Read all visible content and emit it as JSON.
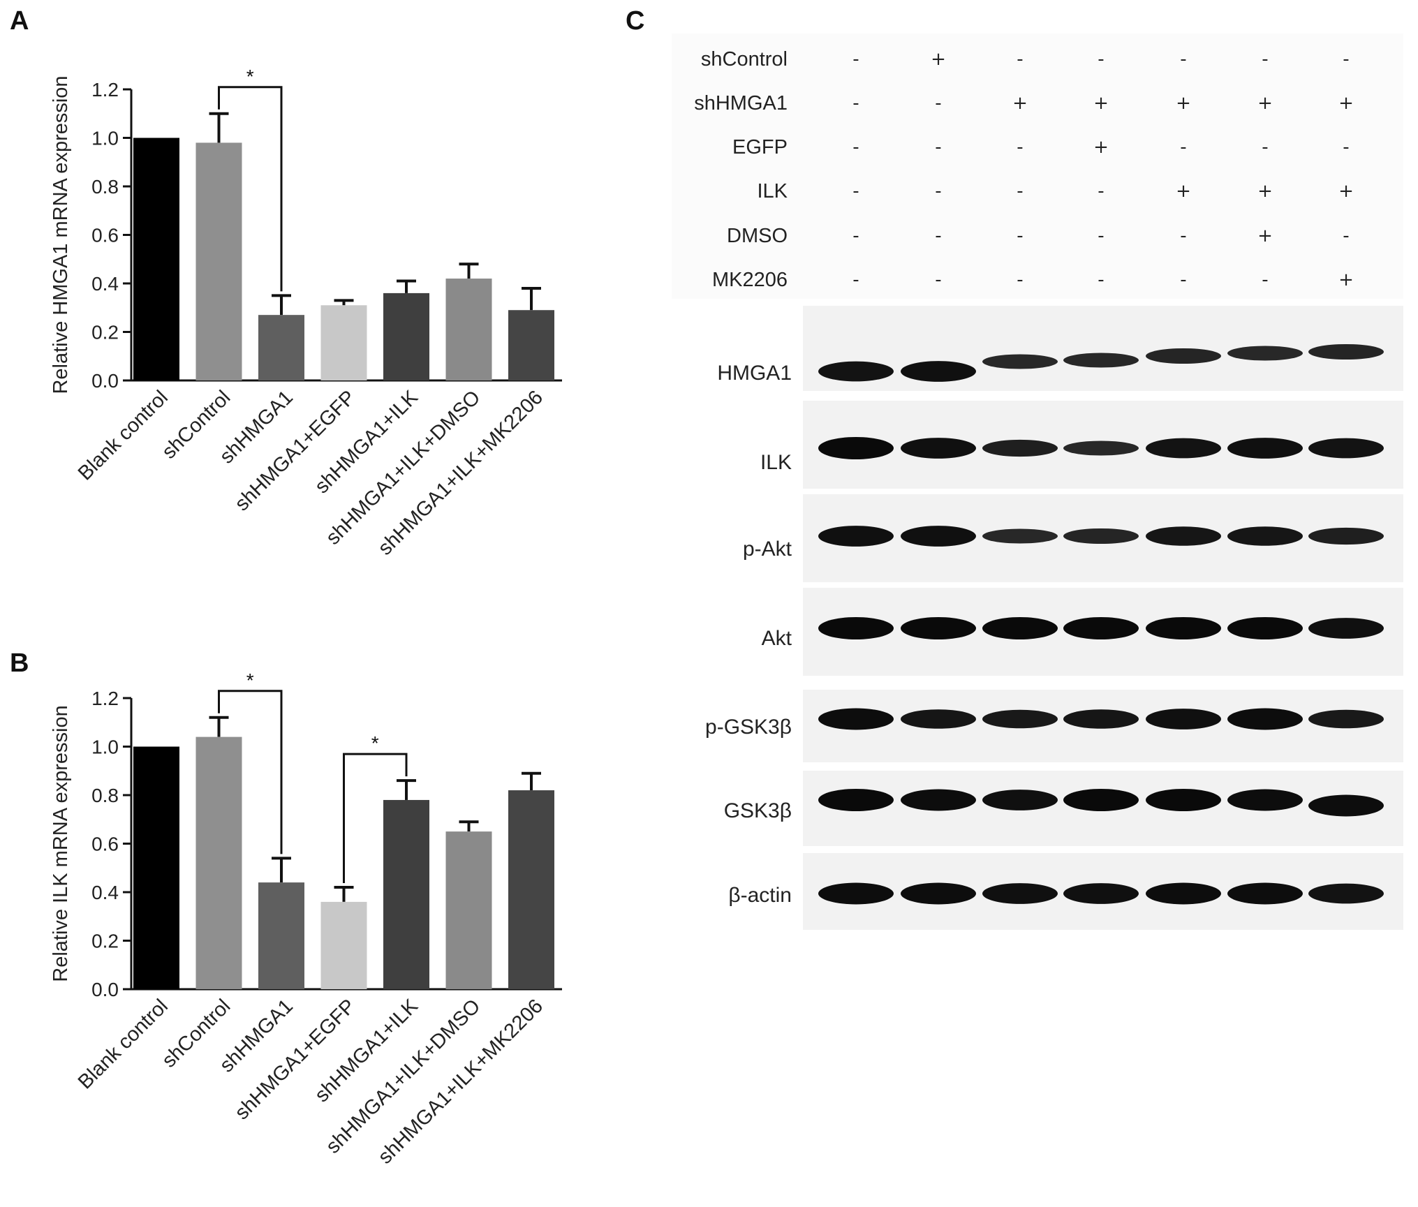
{
  "panels": {
    "a": "A",
    "b": "B",
    "c": "C"
  },
  "chart_data": [
    {
      "panel": "A",
      "type": "bar",
      "ylabel": "Relative HMGA1 mRNA expression",
      "xlabel": "",
      "ylim": [
        0,
        1.2
      ],
      "yticks": [
        "0.0",
        "0.2",
        "0.4",
        "0.6",
        "0.8",
        "1.0",
        "1.2"
      ],
      "categories": [
        "Blank control",
        "shControl",
        "shHMGA1",
        "shHMGA1+EGFP",
        "shHMGA1+ILK",
        "shHMGA1+ILK+DMSO",
        "shHMGA1+ILK+MK2206"
      ],
      "values": [
        1.0,
        0.98,
        0.27,
        0.31,
        0.36,
        0.42,
        0.29
      ],
      "errors": [
        0.0,
        0.12,
        0.08,
        0.02,
        0.05,
        0.06,
        0.09
      ],
      "colors": [
        "#000000",
        "#8f8f8f",
        "#5f5f5f",
        "#c8c8c8",
        "#3f3f3f",
        "#8a8a8a",
        "#454545"
      ],
      "significance": [
        {
          "from": 1,
          "to": 2,
          "label": "*"
        }
      ]
    },
    {
      "panel": "B",
      "type": "bar",
      "ylabel": "Relative ILK mRNA expression",
      "xlabel": "",
      "ylim": [
        0,
        1.2
      ],
      "yticks": [
        "0.0",
        "0.2",
        "0.4",
        "0.6",
        "0.8",
        "1.0",
        "1.2"
      ],
      "categories": [
        "Blank control",
        "shControl",
        "shHMGA1",
        "shHMGA1+EGFP",
        "shHMGA1+ILK",
        "shHMGA1+ILK+DMSO",
        "shHMGA1+ILK+MK2206"
      ],
      "values": [
        1.0,
        1.04,
        0.44,
        0.36,
        0.78,
        0.65,
        0.82
      ],
      "errors": [
        0.0,
        0.08,
        0.1,
        0.06,
        0.08,
        0.04,
        0.07
      ],
      "colors": [
        "#000000",
        "#8f8f8f",
        "#5f5f5f",
        "#c8c8c8",
        "#3f3f3f",
        "#8a8a8a",
        "#454545"
      ],
      "significance": [
        {
          "from": 1,
          "to": 2,
          "label": "*"
        },
        {
          "from": 3,
          "to": 4,
          "label": "*"
        }
      ]
    }
  ],
  "western_blot": {
    "conditions": [
      {
        "label": "shControl",
        "signs": [
          "-",
          "+",
          "-",
          "-",
          "-",
          "-",
          "-"
        ]
      },
      {
        "label": "shHMGA1",
        "signs": [
          "-",
          "-",
          "+",
          "+",
          "+",
          "+",
          "+"
        ]
      },
      {
        "label": "EGFP",
        "signs": [
          "-",
          "-",
          "-",
          "+",
          "-",
          "-",
          "-"
        ]
      },
      {
        "label": "ILK",
        "signs": [
          "-",
          "-",
          "-",
          "-",
          "+",
          "+",
          "+"
        ]
      },
      {
        "label": "DMSO",
        "signs": [
          "-",
          "-",
          "-",
          "-",
          "-",
          "+",
          "-"
        ]
      },
      {
        "label": "MK2206",
        "signs": [
          "-",
          "-",
          "-",
          "-",
          "-",
          "-",
          "+"
        ]
      }
    ],
    "proteins": [
      {
        "label": "HMGA1",
        "intensity": [
          0.85,
          0.9,
          0.5,
          0.5,
          0.55,
          0.5,
          0.55
        ]
      },
      {
        "label": "ILK",
        "intensity": [
          1.0,
          0.9,
          0.65,
          0.5,
          0.85,
          0.9,
          0.85
        ]
      },
      {
        "label": "p-Akt",
        "intensity": [
          0.9,
          0.9,
          0.5,
          0.55,
          0.8,
          0.8,
          0.65
        ]
      },
      {
        "label": "Akt",
        "intensity": [
          1.0,
          1.0,
          1.0,
          1.0,
          1.0,
          1.0,
          0.9
        ]
      },
      {
        "label": "p-GSK3β",
        "intensity": [
          0.95,
          0.8,
          0.75,
          0.8,
          0.9,
          0.95,
          0.75
        ]
      },
      {
        "label": "GSK3β",
        "intensity": [
          1.0,
          0.95,
          0.9,
          1.0,
          1.0,
          0.95,
          0.95
        ]
      },
      {
        "label": "β-actin",
        "intensity": [
          0.95,
          0.95,
          0.9,
          0.9,
          0.95,
          0.95,
          0.85
        ]
      }
    ]
  }
}
